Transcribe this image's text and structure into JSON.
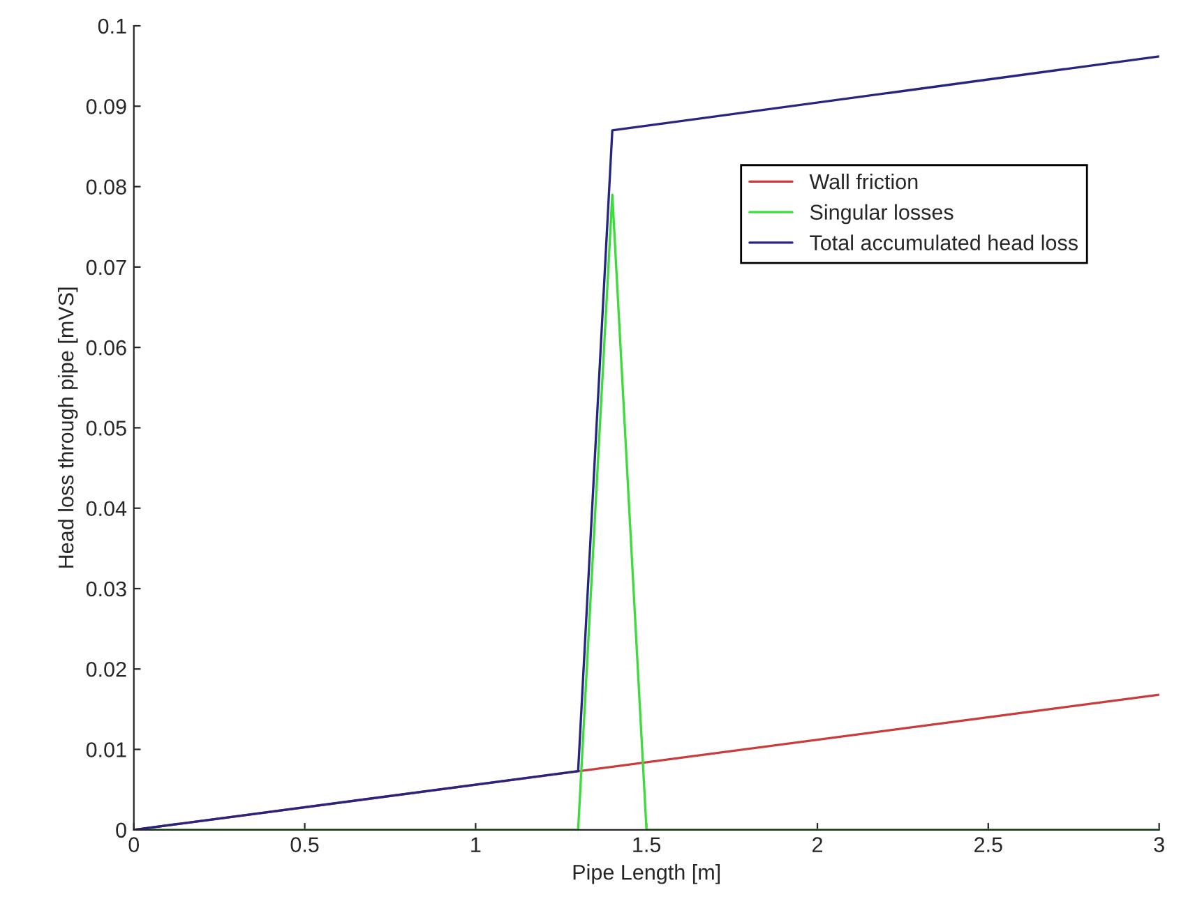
{
  "chart_data": {
    "type": "line",
    "xlabel": "Pipe Length [m]",
    "ylabel": "Head loss through pipe [mVS]",
    "xlim": [
      0,
      3
    ],
    "xticks": [
      0,
      0.5,
      1,
      1.5,
      2,
      2.5,
      3
    ],
    "ylim": [
      0,
      0.1
    ],
    "yticks": [
      0,
      0.01,
      0.02,
      0.03,
      0.04,
      0.05,
      0.06,
      0.07,
      0.08,
      0.09,
      0.1
    ],
    "grid": false,
    "legend": "top right",
    "marker": "none",
    "line_style": "solid",
    "series": [
      {
        "name": "Wall friction",
        "color": "#c83c3c",
        "x": [
          0,
          3
        ],
        "values": [
          0,
          0.0168
        ]
      },
      {
        "name": "Singular losses",
        "color": "#3cdc3c",
        "x": [
          0,
          1.3,
          1.4,
          1.5,
          3
        ],
        "values": [
          0,
          0,
          0.079,
          0,
          0
        ]
      },
      {
        "name": "Total accumulated head loss",
        "color": "#262682",
        "x": [
          0,
          1.3,
          1.4,
          3
        ],
        "values": [
          0,
          0.0073,
          0.087,
          0.0962
        ]
      }
    ]
  }
}
